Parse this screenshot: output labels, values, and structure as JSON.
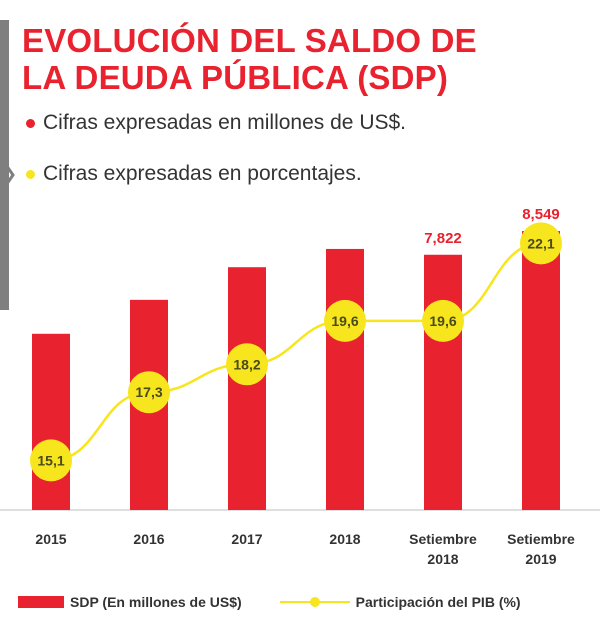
{
  "header": {
    "title_line1": "EVOLUCIÓN DEL SALDO DE",
    "title_line2": "LA DEUDA PÚBLICA (SDP)"
  },
  "notes": [
    {
      "text": "Cifras expresadas en millones de US$.",
      "color": "#e8222e"
    },
    {
      "text": "Cifras expresadas en porcentajes.",
      "color": "#f7e51e"
    }
  ],
  "legend": {
    "bar_label": "SDP (En millones de US$)",
    "line_label": "Participación del PIB (%)"
  },
  "colors": {
    "bar": "#e8222e",
    "line": "#f7e51e",
    "bar_label": "#e8222e",
    "point_label": "#4a4a1a",
    "axis": "#bfbfbf"
  },
  "chart_data": {
    "type": "bar",
    "categories": [
      [
        "2015"
      ],
      [
        "2016"
      ],
      [
        "2017"
      ],
      [
        "2018"
      ],
      [
        "Setiembre",
        "2018"
      ],
      [
        "Setiembre",
        "2019"
      ]
    ],
    "series": [
      {
        "name": "SDP (En millones de US$)",
        "type": "bar",
        "values": [
          5400,
          6440,
          7440,
          8000,
          7822,
          8549
        ],
        "labels": [
          "",
          "",
          "",
          "",
          "7,822",
          "8,549"
        ]
      },
      {
        "name": "Participación del PIB (%)",
        "type": "line",
        "values": [
          15.1,
          17.3,
          18.2,
          19.6,
          19.6,
          22.1
        ],
        "labels": [
          "15,1",
          "17,3",
          "18,2",
          "19,6",
          "19,6",
          "22,1"
        ]
      }
    ],
    "ylim_bar": [
      0,
      9500
    ],
    "ylim_line": [
      13.5,
      23.5
    ]
  }
}
